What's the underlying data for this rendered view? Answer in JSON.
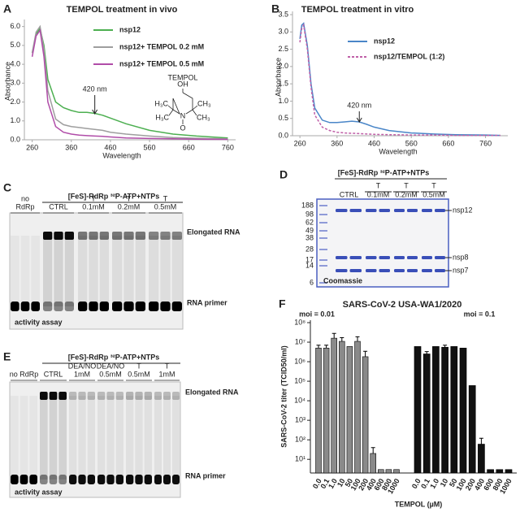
{
  "chart_data": [
    {
      "panel": "A",
      "type": "line",
      "title": "TEMPOL treatment in vivo",
      "x_label": "Wavelength",
      "y_label": "Absorbance",
      "x": [
        260,
        270,
        280,
        290,
        300,
        320,
        340,
        360,
        380,
        400,
        420,
        440,
        460,
        500,
        560,
        620,
        680,
        760
      ],
      "series": [
        {
          "name": "nsp12",
          "color": "#4caf50",
          "values": [
            4.6,
            5.6,
            5.9,
            5.0,
            3.2,
            2.0,
            1.7,
            1.55,
            1.45,
            1.45,
            1.4,
            1.3,
            1.15,
            0.85,
            0.5,
            0.3,
            0.2,
            0.1
          ]
        },
        {
          "name": "nsp12+ TEMPOL 0.2 mM",
          "color": "#9e9e9e",
          "values": [
            4.6,
            5.7,
            6.0,
            4.8,
            2.6,
            1.1,
            0.8,
            0.7,
            0.65,
            0.6,
            0.55,
            0.5,
            0.4,
            0.3,
            0.2,
            0.12,
            0.08,
            0.05
          ]
        },
        {
          "name": "nsp12+ TEMPOL 0.5 mM",
          "color": "#b04ca8",
          "values": [
            4.4,
            5.5,
            5.8,
            4.4,
            2.0,
            0.7,
            0.4,
            0.3,
            0.25,
            0.22,
            0.2,
            0.18,
            0.15,
            0.1,
            0.07,
            0.05,
            0.03,
            0.02
          ]
        }
      ],
      "xlim": [
        240,
        780
      ],
      "xticks": [
        260,
        360,
        460,
        560,
        660,
        760
      ],
      "ylim": [
        0,
        6.2
      ],
      "yticks": [
        {
          "value": 0,
          "label": "0.0"
        },
        {
          "value": 1,
          "label": "1.0"
        },
        {
          "value": 2,
          "label": "2.0"
        },
        {
          "value": 3,
          "label": "3.0"
        },
        {
          "value": 4,
          "label": "4.0"
        },
        {
          "value": 5,
          "label": "5.0"
        },
        {
          "value": 6,
          "label": "6.0"
        }
      ],
      "annotations": [
        {
          "text": "420 nm",
          "x": 420
        }
      ],
      "structure": {
        "name": "TEMPOL",
        "atoms": [
          "OH",
          "N",
          "O",
          "H₃C",
          "H₃C",
          "CH₃",
          "CH₃"
        ]
      }
    },
    {
      "panel": "B",
      "type": "line",
      "title": "TEMPOL treatment in vitro",
      "x_label": "Wavelength",
      "y_label": "Absorbance",
      "x": [
        260,
        265,
        270,
        280,
        290,
        300,
        320,
        340,
        360,
        380,
        400,
        420,
        440,
        460,
        500,
        560,
        620,
        680,
        760,
        800
      ],
      "series": [
        {
          "name": "nsp12",
          "color": "#4a86c8",
          "line_style": "solid",
          "values": [
            2.8,
            3.2,
            3.25,
            2.6,
            1.5,
            0.8,
            0.45,
            0.38,
            0.38,
            0.4,
            0.42,
            0.4,
            0.33,
            0.25,
            0.15,
            0.08,
            0.05,
            0.03,
            0.02,
            0.01
          ]
        },
        {
          "name": "nsp12/TEMPOL (1:2)",
          "color": "#c060a8",
          "line_style": "dashed",
          "values": [
            2.7,
            3.1,
            3.2,
            2.5,
            1.4,
            0.6,
            0.25,
            0.15,
            0.1,
            0.08,
            0.07,
            0.06,
            0.05,
            0.04,
            0.03,
            0.02,
            0.02,
            0.01,
            0.01,
            0.01
          ]
        }
      ],
      "xlim": [
        240,
        820
      ],
      "xticks": [
        260,
        360,
        460,
        560,
        660,
        760
      ],
      "ylim": [
        0,
        3.5
      ],
      "yticks": [
        {
          "value": 0,
          "label": "0.0"
        },
        0.5,
        {
          "value": 1,
          "label": "1.0"
        },
        1.5,
        {
          "value": 2,
          "label": "2.0"
        },
        2.5,
        {
          "value": 3,
          "label": "3.0"
        },
        3.5
      ],
      "annotations": [
        {
          "text": "420 nm",
          "x": 420
        }
      ]
    },
    {
      "panel": "F",
      "type": "bar",
      "log_y": true,
      "title": "SARS-CoV-2 USA-WA1/2020",
      "x_label": "TEMPOL (µM)",
      "y_label": "SARS-CoV-2 titer (TCID50/ml)",
      "categories": [
        "0.0",
        "0.1",
        "1.0",
        "10",
        "50",
        "100",
        "200",
        "400",
        "600",
        "800",
        "1000"
      ],
      "series": [
        {
          "name": "moi = 0.01",
          "color": "#8a8a8a",
          "values": [
            5000000,
            5000000,
            16000000,
            11000000,
            6000000,
            11000000,
            1800000,
            20,
            3,
            3,
            3
          ],
          "errors": [
            2000000,
            2000000,
            12000000,
            6000000,
            null,
            8000000,
            1600000,
            20,
            null,
            null,
            null
          ]
        },
        {
          "name": "moi = 0.1",
          "color": "#111111",
          "values": [
            6000000,
            2500000,
            6000000,
            5500000,
            6000000,
            5000000,
            60000,
            60,
            3,
            3,
            3
          ],
          "errors": [
            null,
            800000,
            null,
            1500000,
            null,
            null,
            null,
            60,
            null,
            null,
            null
          ]
        }
      ],
      "ylim": [
        2,
        100000000
      ],
      "yticks": [
        {
          "value": 10,
          "label": "10¹"
        },
        {
          "value": 100,
          "label": "10²"
        },
        {
          "value": 1000,
          "label": "10³"
        },
        {
          "value": 10000,
          "label": "10⁴"
        },
        {
          "value": 100000,
          "label": "10⁵"
        },
        {
          "value": 1000000,
          "label": "10⁶"
        },
        {
          "value": 10000000,
          "label": "10⁷"
        },
        {
          "value": 100000000,
          "label": "10⁸"
        }
      ]
    }
  ],
  "gels": [
    {
      "panel": "C",
      "header": "[FeS]-RdRp ³²P-ATP+NTPs",
      "lanes": [
        [
          "no",
          "RdRp"
        ],
        [
          "CTRL"
        ],
        [
          "T",
          "0.1mM"
        ],
        [
          "T",
          "0.2mM"
        ],
        [
          "T",
          "0.5mM"
        ]
      ],
      "bands": [
        "Elongated RNA",
        "RNA primer"
      ],
      "footer": "activity assay"
    },
    {
      "panel": "D",
      "header": "[FeS]-RdRp ³²P-ATP+NTPs",
      "lanes": [
        [
          "CTRL"
        ],
        [
          "T",
          "0.1mM"
        ],
        [
          "T",
          "0.2mM"
        ],
        [
          "T",
          "0.5mM"
        ]
      ],
      "markers": [
        188,
        98,
        62,
        49,
        38,
        28,
        17,
        14,
        6
      ],
      "bands": [
        "nsp12",
        "nsp8",
        "nsp7"
      ],
      "footer": "Coomassie"
    },
    {
      "panel": "E",
      "header": "[FeS]-RdRp ³²P-ATP+NTPs",
      "lanes": [
        [
          "no RdRp"
        ],
        [
          "CTRL"
        ],
        [
          "DEA/NO",
          "1mM"
        ],
        [
          "DEA/NO",
          "0.5mM"
        ],
        [
          "T",
          "0.5mM"
        ],
        [
          "T",
          "1mM"
        ]
      ],
      "bands": [
        "Elongated RNA",
        "RNA primer"
      ],
      "footer": "activity assay"
    }
  ]
}
